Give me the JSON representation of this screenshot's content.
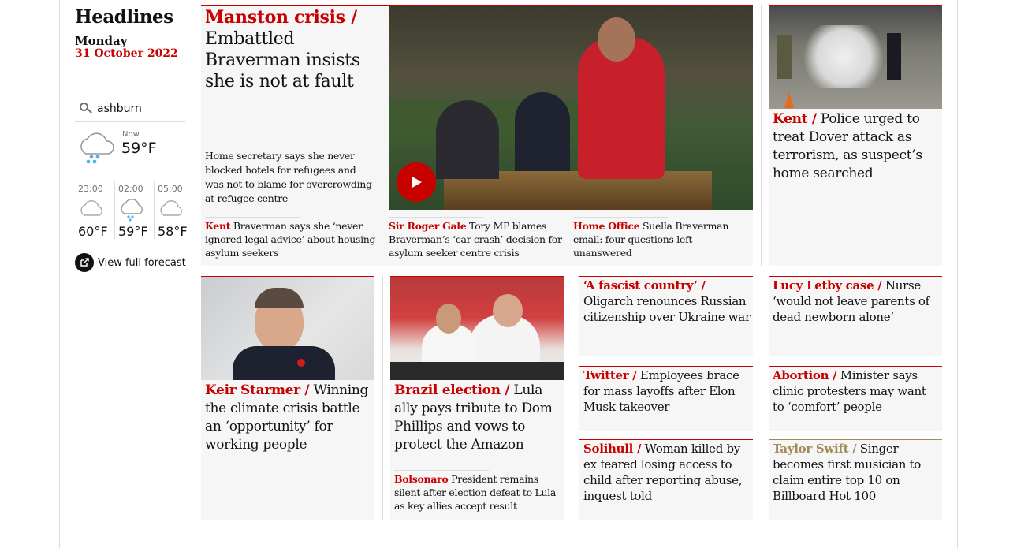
{
  "section": {
    "title": "Headlines",
    "day": "Monday",
    "date": "31 October 2022"
  },
  "weather": {
    "location": "ashburn",
    "now_label": "Now",
    "now_temp": "59°F",
    "forecast": [
      {
        "time": "23:00",
        "temp": "60°F",
        "icon": "cloud-icon"
      },
      {
        "time": "02:00",
        "temp": "59°F",
        "icon": "cloud-rain-icon"
      },
      {
        "time": "05:00",
        "temp": "58°F",
        "icon": "cloud-icon"
      }
    ],
    "full_forecast_label": "View full forecast"
  },
  "lead": {
    "kicker": "Manston crisis /",
    "headline": "Embattled Braverman insists she is not at fault",
    "standfirst": "Home secretary says she never blocked hotels for refugees and was not to blame for overcrowding at refugee centre",
    "sublinks": [
      {
        "kicker": "Kent",
        "text": "Braverman says she ‘never ignored legal advice’ about housing asylum seekers"
      },
      {
        "kicker": "Sir Roger Gale",
        "text": "Tory MP blames Braverman’s ‘car crash’ decision for asylum seeker centre crisis"
      },
      {
        "kicker": "Home Office",
        "text": "Suella Braverman email: four questions left unanswered"
      }
    ]
  },
  "kent": {
    "kicker": "Kent /",
    "headline": "Police urged to treat Dover attack as terrorism, as suspect’s home searched"
  },
  "starmer": {
    "kicker": "Keir Starmer /",
    "headline": "Winning the climate crisis battle an ‘opportunity’ for working people"
  },
  "brazil": {
    "kicker": "Brazil election /",
    "headline": "Lula ally pays tribute to Dom Phillips and vows to protect the Amazon",
    "sublink": {
      "kicker": "Bolsonaro",
      "text": "President remains silent after election defeat to Lula as key allies accept result"
    }
  },
  "small_stories": {
    "fascist": {
      "kicker": "‘A fascist country’ /",
      "headline": "Oligarch renounces Russian citizenship over Ukraine war"
    },
    "letby": {
      "kicker": "Lucy Letby case /",
      "headline": "Nurse ‘would not leave parents of dead newborn alone’"
    },
    "twitter": {
      "kicker": "Twitter  /",
      "headline": "Employees brace for mass layoffs after Elon Musk takeover"
    },
    "abortion": {
      "kicker": "Abortion /",
      "headline": "Minister says clinic protesters may want to ‘comfort’ people"
    },
    "solihull": {
      "kicker": "Solihull /",
      "headline": "Woman killed by ex feared losing access to child after reporting abuse, inquest told"
    },
    "swift": {
      "kicker": "Taylor Swift /",
      "headline": "Singer becomes first musician to claim entire top 10 on Billboard Hot 100"
    }
  },
  "colors": {
    "news_red": "#c70000",
    "culture_gold": "#a38b58",
    "card_bg": "#f6f6f6",
    "rule": "#dcdcdc"
  }
}
